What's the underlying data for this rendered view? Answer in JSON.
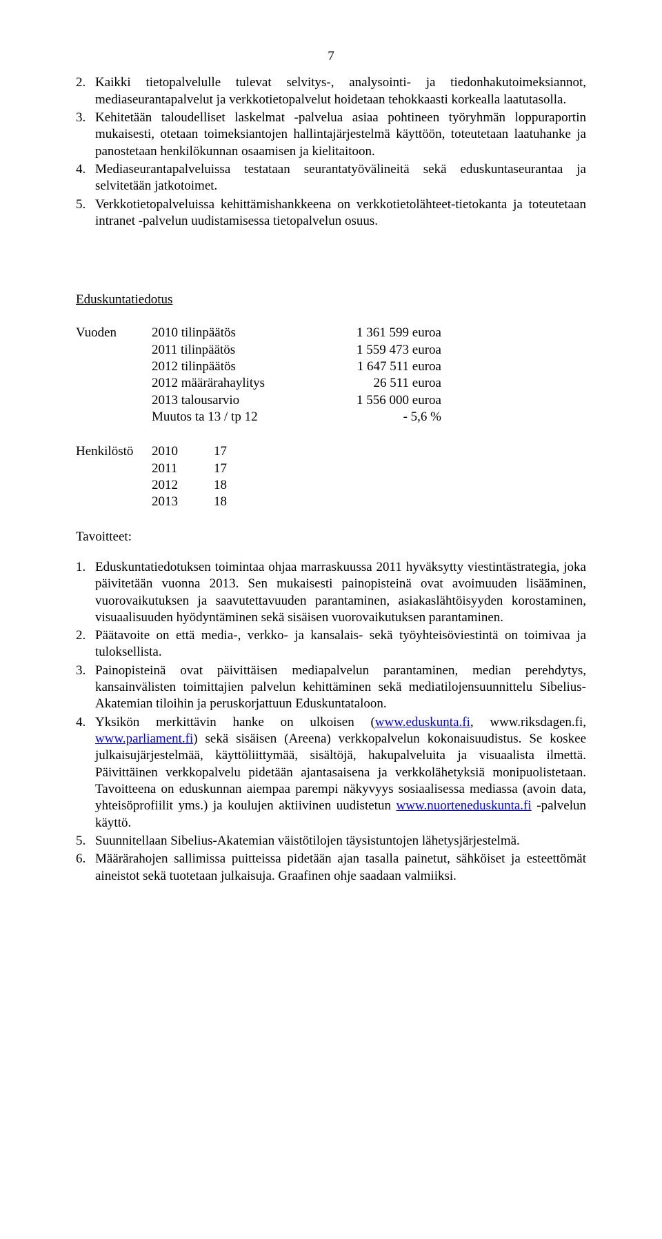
{
  "page_number": "7",
  "section_a": {
    "items": [
      {
        "num": "2.",
        "text": "Kaikki tietopalvelulle tulevat selvitys-, analysointi- ja tiedonhakutoimeksiannot, mediaseurantapalvelut ja verkkotietopalvelut hoidetaan tehokkaasti korkealla laatutasolla."
      },
      {
        "num": "3.",
        "text": "Kehitetään taloudelliset laskelmat -palvelua asiaa pohtineen työryhmän loppuraportin mukaisesti, otetaan toimeksiantojen hallintajärjestelmä käyttöön, toteutetaan laatuhanke ja panostetaan henkilökunnan osaamisen ja kielitaitoon."
      },
      {
        "num": "4.",
        "text": "Mediaseurantapalveluissa testataan seurantatyövälineitä sekä eduskuntaseurantaa ja selvitetään jatkotoimet."
      },
      {
        "num": "5.",
        "text": "Verkkotietopalveluissa kehittämishankkeena on verkkotietolähteet-tietokanta ja toteutetaan intranet -palvelun uudistamisessa tietopalvelun osuus."
      }
    ]
  },
  "section_b_title": "Eduskuntatiedotus",
  "finance": {
    "lead": "Vuoden",
    "rows": [
      {
        "label": "2010 tilinpäätös",
        "value": "1 361 599 euroa"
      },
      {
        "label": "2011 tilinpäätös",
        "value": "1 559 473 euroa"
      },
      {
        "label": "2012 tilinpäätös",
        "value": "1 647 511 euroa"
      },
      {
        "label": "2012 määrärahaylitys",
        "value": "26 511 euroa"
      },
      {
        "label": "2013 talousarvio",
        "value": "1 556 000 euroa"
      },
      {
        "label": "Muutos ta 13 / tp 12",
        "value": "-  5,6 %"
      }
    ]
  },
  "staff": {
    "lead": "Henkilöstö",
    "rows": [
      {
        "year": "2010",
        "count": "17"
      },
      {
        "year": "2011",
        "count": "17"
      },
      {
        "year": "2012",
        "count": "18"
      },
      {
        "year": "2013",
        "count": "18"
      }
    ]
  },
  "tav_label": "Tavoitteet:",
  "section_b": {
    "items": [
      {
        "num": "1.",
        "text_pre": "Eduskuntatiedotuksen toimintaa ohjaa marraskuussa 2011 hyväksytty viestintästrategia, joka päivitetään vuonna 2013. Sen mukaisesti painopisteinä ovat avoimuuden lisääminen, vuorovaikutuksen ja saavutettavuuden parantaminen, asiakaslähtöisyyden korostaminen, visuaalisuuden hyödyntäminen sekä sisäisen vuorovaikutuksen parantaminen."
      },
      {
        "num": "2.",
        "text_pre": "Päätavoite on että media-, verkko- ja kansalais- sekä työyhteisöviestintä on toimivaa ja tuloksellista."
      },
      {
        "num": "3.",
        "text_pre": "Painopisteinä ovat päivittäisen mediapalvelun parantaminen, median perehdytys, kansainvälisten toimittajien palvelun kehittäminen sekä mediatilojensuunnittelu Sibelius-Akatemian tiloihin ja peruskorjattuun Eduskuntataloon."
      },
      {
        "num": "4.",
        "text_pre": "Yksikön merkittävin hanke on ulkoisen (",
        "link1": "www.eduskunta.fi",
        "mid1": ", www.riksdagen.fi, ",
        "link2": "www.parliament.fi",
        "mid2": ") sekä sisäisen (Areena) verkkopalvelun kokonaisuudistus. Se koskee julkaisujärjestelmää, käyttöliittymää, sisältöjä, hakupalveluita ja visuaalista ilmettä. Päivittäinen verkkopalvelu pidetään ajantasaisena ja verkkolähetyksiä monipuolistetaan. Tavoitteena on eduskunnan aiempaa parempi näkyvyys sosiaalisessa mediassa (avoin data, yhteisöprofiilit yms.) ja koulujen aktiivinen uudistetun ",
        "link3": "www.nuorteneduskunta.fi",
        "mid3": " -palvelun käyttö."
      },
      {
        "num": "5.",
        "text_pre": "Suunnitellaan Sibelius-Akatemian väistötilojen täysistuntojen lähetysjärjestelmä."
      },
      {
        "num": "6.",
        "text_pre": "Määrärahojen sallimissa puitteissa pidetään ajan tasalla painetut, sähköiset ja esteettömät aineistot sekä tuotetaan julkaisuja. Graafinen ohje saadaan valmiiksi."
      }
    ],
    "link_color": "#0000ee"
  }
}
